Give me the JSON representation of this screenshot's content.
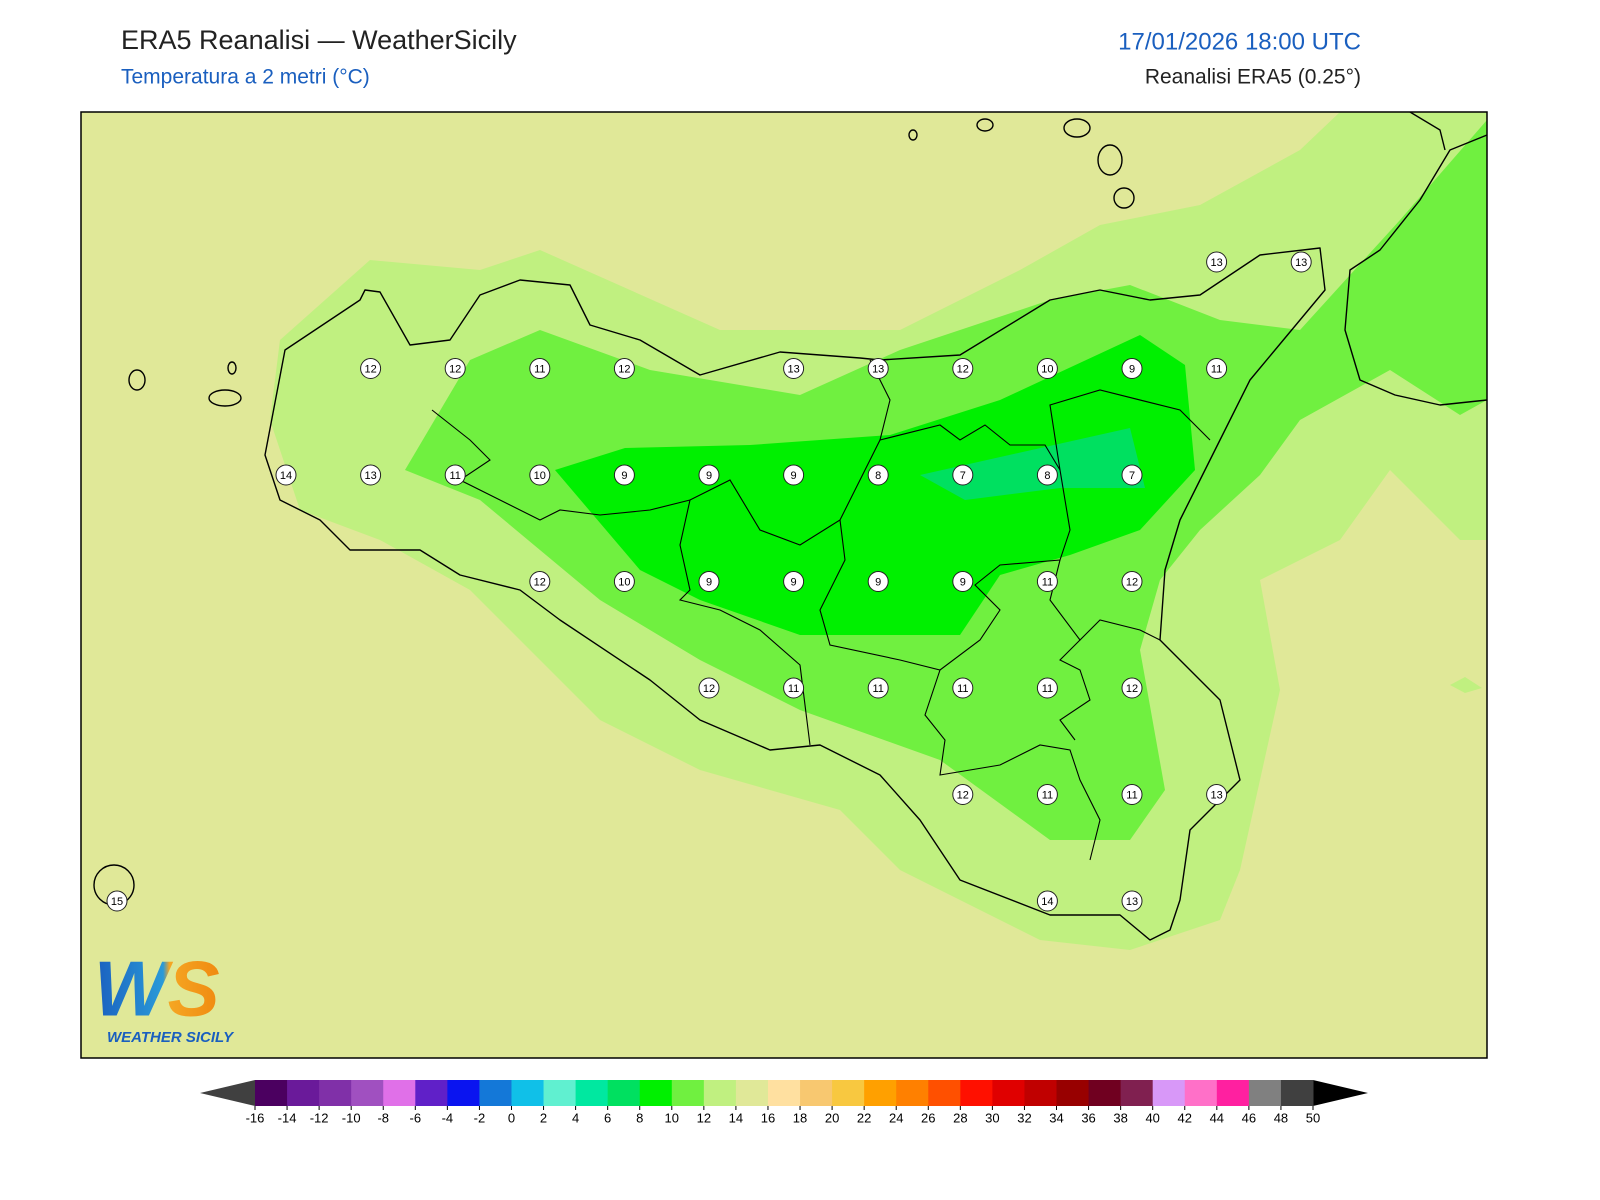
{
  "header": {
    "title": "ERA5 Reanalisi — WeatherSicily",
    "subtitle": "Temperatura a 2 metri (°C)",
    "datetime": "17/01/2026 18:00 UTC",
    "source": "Reanalisi ERA5 (0.25°)"
  },
  "map": {
    "background": "#e0e898",
    "stations": [
      13,
      13,
      12,
      12,
      11,
      12,
      13,
      13,
      12,
      10,
      9,
      11,
      14,
      13,
      11,
      10,
      9,
      9,
      9,
      8,
      7,
      8,
      7,
      12,
      10,
      9,
      9,
      9,
      9,
      11,
      12,
      12,
      11,
      11,
      11,
      11,
      12,
      12,
      11,
      11,
      13,
      15,
      14,
      13
    ]
  },
  "colorbar": {
    "ticks": [
      -16,
      -14,
      -12,
      -10,
      -8,
      -6,
      -4,
      -2,
      0,
      2,
      4,
      6,
      8,
      10,
      12,
      14,
      16,
      18,
      20,
      22,
      24,
      26,
      28,
      30,
      32,
      34,
      36,
      38,
      40,
      42,
      44,
      46,
      48,
      50
    ],
    "colors": [
      "#4b0060",
      "#6a1a9a",
      "#8030a8",
      "#a050c0",
      "#e070e8",
      "#6020c8",
      "#0a14f0",
      "#1478d8",
      "#10c0e8",
      "#60f0d0",
      "#00e8a0",
      "#00e060",
      "#00f000",
      "#70f040",
      "#c0f080",
      "#e0e898",
      "#ffe0a0",
      "#f8c870",
      "#f8c840",
      "#ffa000",
      "#ff8000",
      "#ff5000",
      "#ff1000",
      "#e00000",
      "#c00000",
      "#980000",
      "#700020",
      "#802050",
      "#d898f8",
      "#ff70c8",
      "#ff20a0",
      "#808080",
      "#404040"
    ],
    "under_color": "#404040",
    "over_color": "#000000"
  },
  "logo": {
    "mark": "WS",
    "text": "WEATHER SICILY"
  }
}
